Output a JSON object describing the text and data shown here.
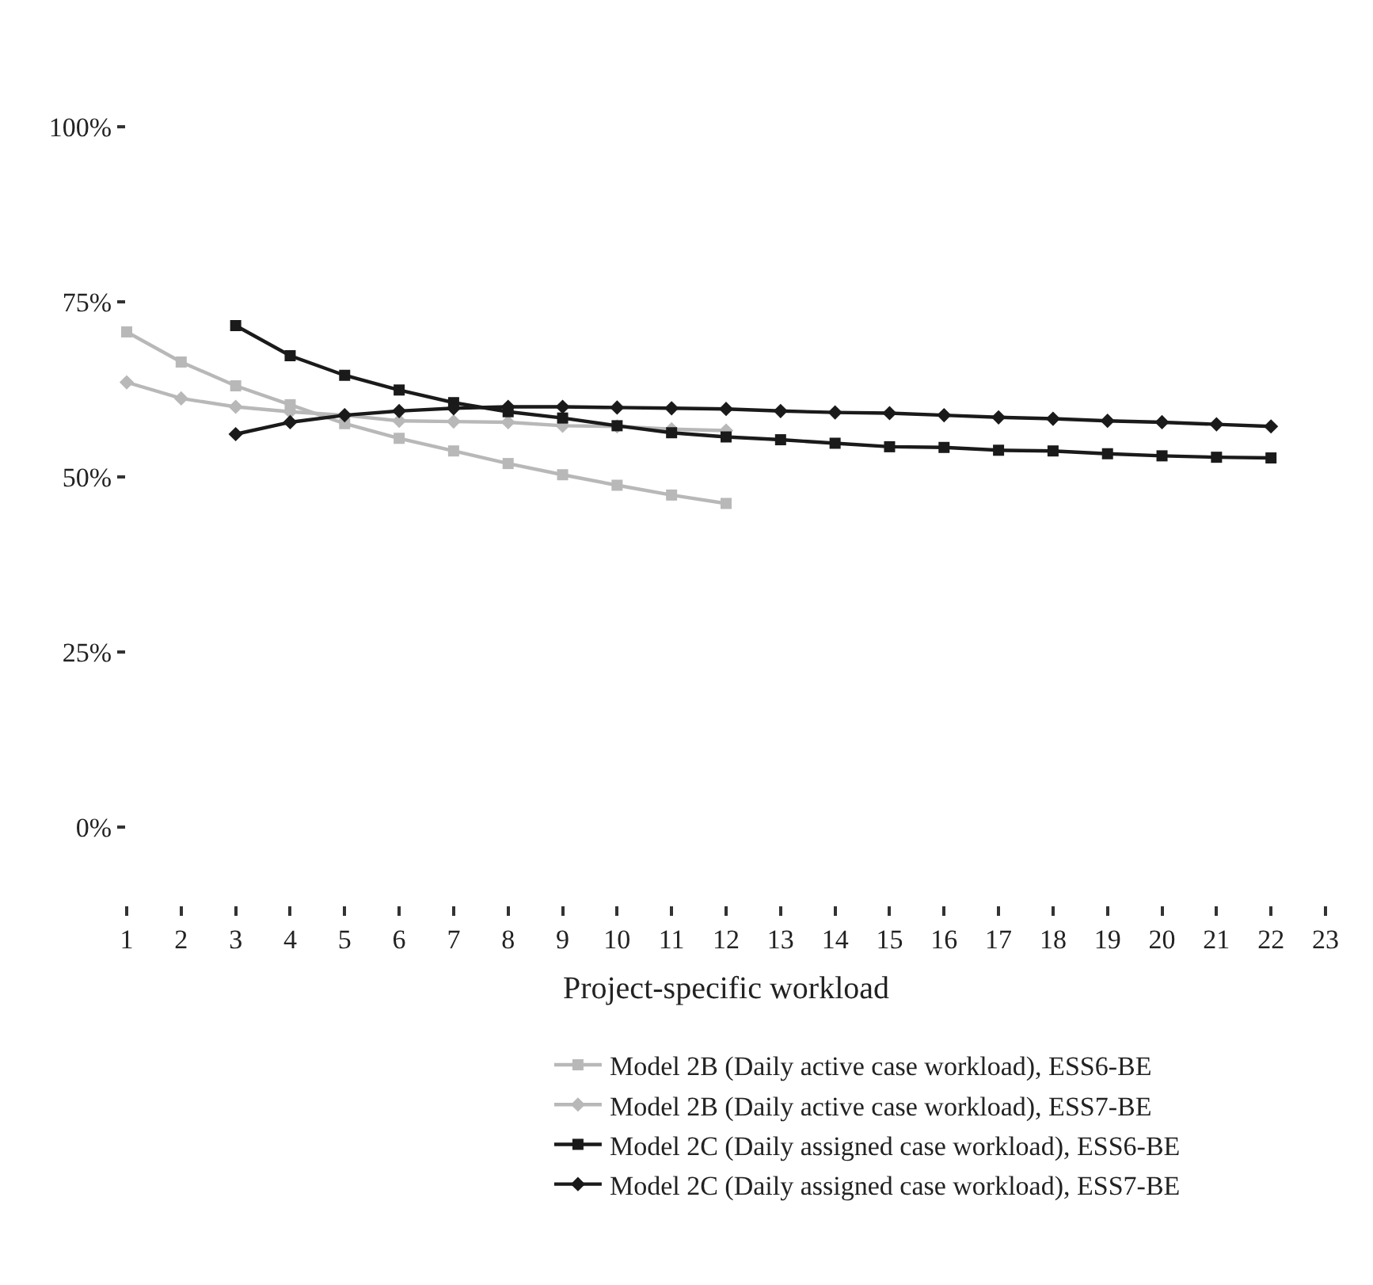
{
  "chart_data": {
    "type": "line",
    "xlabel": "Project-specific workload",
    "x": [
      1,
      2,
      3,
      4,
      5,
      6,
      7,
      8,
      9,
      10,
      11,
      12,
      13,
      14,
      15,
      16,
      17,
      18,
      19,
      20,
      21,
      22
    ],
    "xlim": [
      1,
      23
    ],
    "xticks": [
      1,
      2,
      3,
      4,
      5,
      6,
      7,
      8,
      9,
      10,
      11,
      12,
      13,
      14,
      15,
      16,
      17,
      18,
      19,
      20,
      21,
      22,
      23
    ],
    "ylim": [
      0,
      100
    ],
    "yticks": [
      {
        "value": 0,
        "label": "0%"
      },
      {
        "value": 25,
        "label": "25%"
      },
      {
        "value": 50,
        "label": "50%"
      },
      {
        "value": 75,
        "label": "75%"
      },
      {
        "value": 100,
        "label": "100%"
      }
    ],
    "legend": "bottom",
    "line_style": "solid",
    "series": [
      {
        "name": "Model 2B (Daily active case workload), ESS6-BE",
        "color": "#b8b8b8",
        "marker": "square",
        "values": [
          70.7,
          66.4,
          63.0,
          60.3,
          57.6,
          55.5,
          53.7,
          51.9,
          50.3,
          48.8,
          47.4,
          46.2,
          null,
          null,
          null,
          null,
          null,
          null,
          null,
          null,
          null,
          null
        ]
      },
      {
        "name": "Model 2B (Daily active case workload), ESS7-BE",
        "color": "#b8b8b8",
        "marker": "diamond",
        "values": [
          63.5,
          61.2,
          60.0,
          59.3,
          58.8,
          58.0,
          57.9,
          57.8,
          57.3,
          57.2,
          56.8,
          56.6,
          null,
          null,
          null,
          null,
          null,
          null,
          null,
          null,
          null,
          null
        ]
      },
      {
        "name": "Model 2C (Daily assigned case workload), ESS6-BE",
        "color": "#1a1a1a",
        "marker": "square",
        "values": [
          null,
          null,
          71.6,
          67.3,
          64.5,
          62.4,
          60.6,
          59.3,
          58.4,
          57.3,
          56.3,
          55.7,
          55.3,
          54.8,
          54.3,
          54.2,
          53.8,
          53.7,
          53.3,
          53.0,
          52.8,
          52.7
        ]
      },
      {
        "name": "Model 2C (Daily assigned case workload), ESS7-BE",
        "color": "#1a1a1a",
        "marker": "diamond",
        "values": [
          null,
          null,
          56.1,
          57.8,
          58.8,
          59.4,
          59.8,
          60.0,
          60.0,
          59.9,
          59.8,
          59.7,
          59.4,
          59.2,
          59.1,
          58.8,
          58.5,
          58.3,
          58.0,
          57.8,
          57.5,
          57.2
        ]
      }
    ]
  }
}
